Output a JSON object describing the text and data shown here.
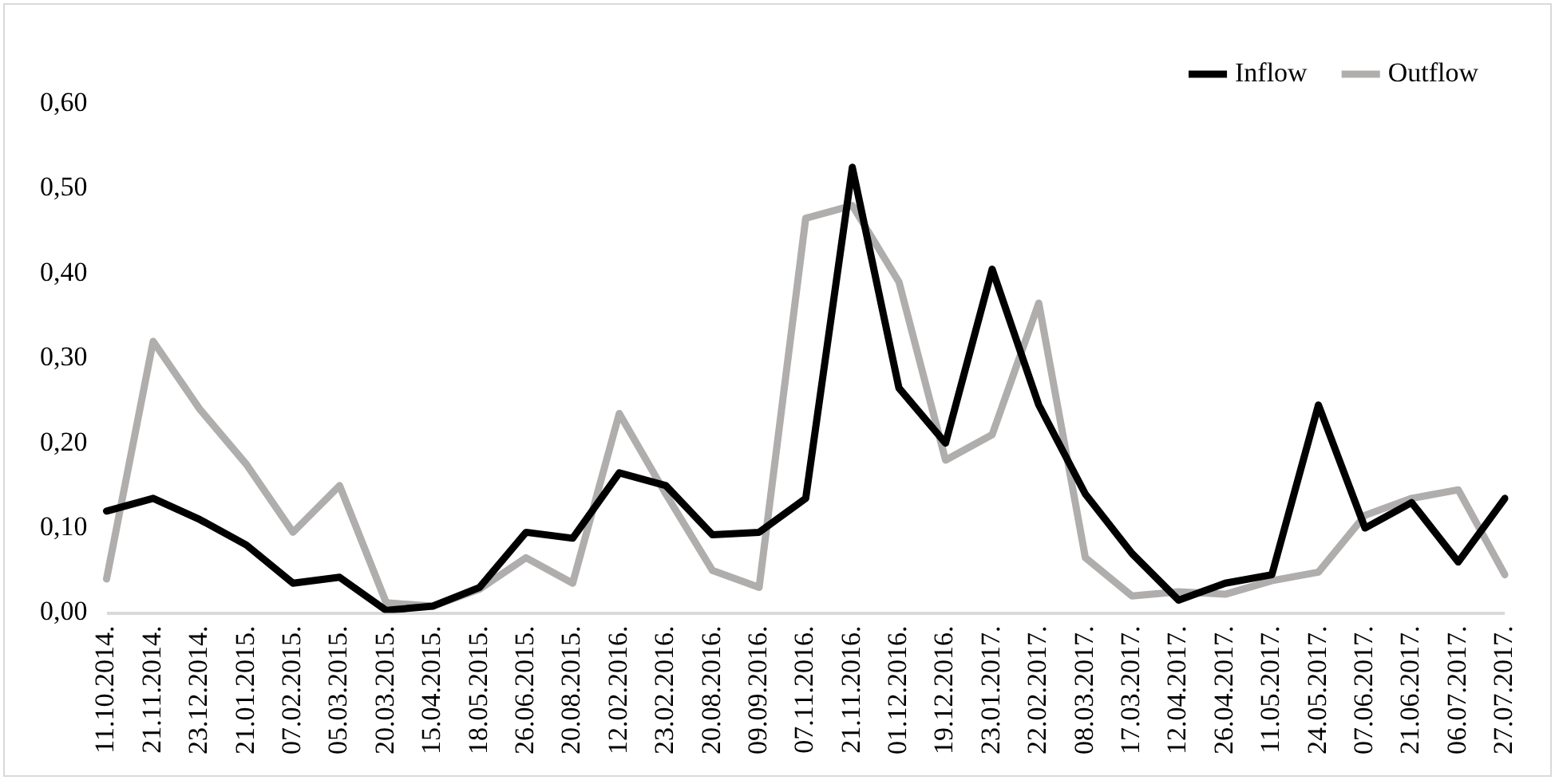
{
  "chart_data": {
    "type": "line",
    "categories": [
      "11.10.2014.",
      "21.11.2014.",
      "23.12.2014.",
      "21.01.2015.",
      "07.02.2015.",
      "05.03.2015.",
      "20.03.2015.",
      "15.04.2015.",
      "18.05.2015.",
      "26.06.2015.",
      "20.08.2015.",
      "12.02.2016.",
      "23.02.2016.",
      "20.08.2016.",
      "09.09.2016.",
      "07.11.2016.",
      "21.11.2016.",
      "01.12.2016.",
      "19.12.2016.",
      "23.01.2017.",
      "22.02.2017.",
      "08.03.2017.",
      "17.03.2017.",
      "12.04.2017.",
      "26.04.2017.",
      "11.05.2017.",
      "24.05.2017.",
      "07.06.2017.",
      "21.06.2017.",
      "06.07.2017.",
      "27.07.2017."
    ],
    "series": [
      {
        "name": "Inflow",
        "color": "#000000",
        "values": [
          0.12,
          0.135,
          0.11,
          0.08,
          0.035,
          0.042,
          0.003,
          0.008,
          0.03,
          0.095,
          0.088,
          0.165,
          0.15,
          0.092,
          0.095,
          0.135,
          0.525,
          0.265,
          0.2,
          0.405,
          0.245,
          0.14,
          0.07,
          0.015,
          0.035,
          0.045,
          0.245,
          0.1,
          0.13,
          0.06,
          0.135
        ]
      },
      {
        "name": "Outflow",
        "color": "#b0adad",
        "values": [
          0.04,
          0.32,
          0.24,
          0.175,
          0.095,
          0.15,
          0.012,
          0.008,
          0.028,
          0.065,
          0.035,
          0.235,
          0.14,
          0.05,
          0.03,
          0.465,
          0.48,
          0.39,
          0.18,
          0.21,
          0.365,
          0.065,
          0.02,
          0.025,
          0.022,
          0.038,
          0.048,
          0.115,
          0.135,
          0.145,
          0.045
        ]
      }
    ],
    "ylim": [
      0,
      0.6
    ],
    "yticks": [
      {
        "value": 0,
        "label": "0,00"
      },
      {
        "value": 0.1,
        "label": "0,10"
      },
      {
        "value": 0.2,
        "label": "0,20"
      },
      {
        "value": 0.3,
        "label": "0,30"
      },
      {
        "value": 0.4,
        "label": "0,40"
      },
      {
        "value": 0.5,
        "label": "0,50"
      },
      {
        "value": 0.6,
        "label": "0,60"
      }
    ],
    "grid": false,
    "legend": "top right",
    "marker": "none",
    "line_style": "solid"
  }
}
